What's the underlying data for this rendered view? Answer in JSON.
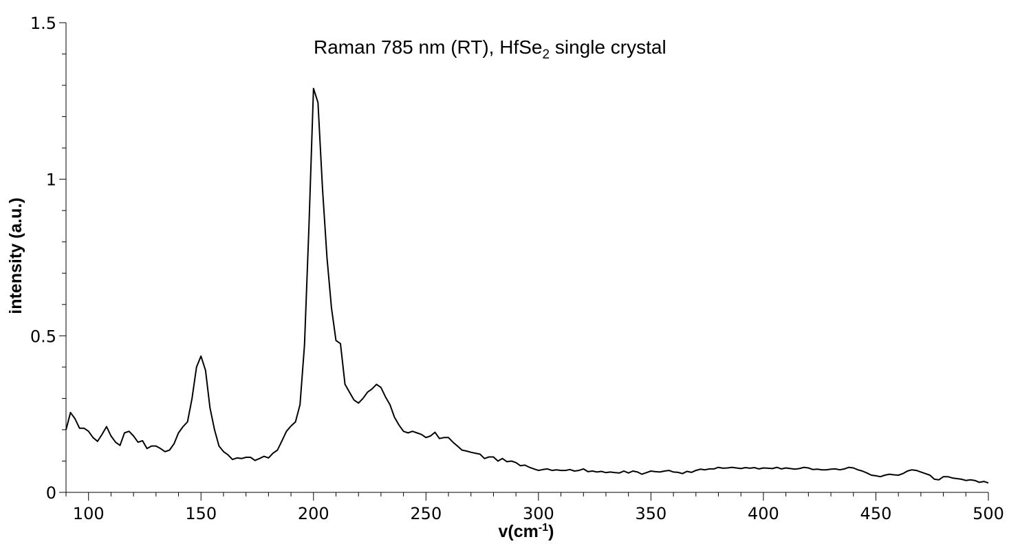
{
  "chart_data": {
    "type": "line",
    "title_main": "Raman 785 nm (RT), HfSe",
    "title_sub": "2",
    "title_rest": " single crystal",
    "xlabel_main": "v(cm",
    "xlabel_sup": "-1",
    "xlabel_end": ")",
    "ylabel": "intensity (a.u.)",
    "xlim": [
      90,
      500
    ],
    "ylim": [
      0,
      1.5
    ],
    "x_ticks": [
      "100",
      "150",
      "200",
      "250",
      "300",
      "350",
      "400",
      "450",
      "500"
    ],
    "y_ticks": [
      "0",
      "0.5",
      "1",
      "1.5"
    ],
    "line_color": "#000000",
    "grid": false,
    "series": [
      {
        "x": [
          90,
          92,
          94,
          96,
          98,
          100,
          102,
          104,
          106,
          108,
          110,
          112,
          114,
          116,
          118,
          120,
          122,
          124,
          126,
          128,
          130,
          132,
          134,
          136,
          138,
          140,
          142,
          144,
          146,
          148,
          150,
          152,
          154,
          156,
          158,
          160,
          162,
          164,
          166,
          168,
          170,
          172,
          174,
          176,
          178,
          180,
          182,
          184,
          186,
          188,
          190,
          192,
          194,
          196,
          198,
          200,
          202,
          204,
          206,
          208,
          210,
          212,
          214,
          216,
          218,
          220,
          222,
          224,
          226,
          228,
          230,
          232,
          234,
          236,
          238,
          240,
          242,
          244,
          246,
          248,
          250,
          252,
          254,
          256,
          258,
          260,
          262,
          264,
          266,
          268,
          270,
          272,
          274,
          276,
          278,
          280,
          282,
          284,
          286,
          288,
          290,
          292,
          294,
          296,
          298,
          300,
          302,
          304,
          306,
          308,
          310,
          312,
          314,
          316,
          318,
          320,
          322,
          324,
          326,
          328,
          330,
          332,
          334,
          336,
          338,
          340,
          342,
          344,
          346,
          348,
          350,
          352,
          354,
          356,
          358,
          360,
          362,
          364,
          366,
          368,
          370,
          372,
          374,
          376,
          378,
          380,
          382,
          384,
          386,
          388,
          390,
          392,
          394,
          396,
          398,
          400,
          402,
          404,
          406,
          408,
          410,
          412,
          414,
          416,
          418,
          420,
          422,
          424,
          426,
          428,
          430,
          432,
          434,
          436,
          438,
          440,
          442,
          444,
          446,
          448,
          450,
          452,
          454,
          456,
          458,
          460,
          462,
          464,
          466,
          468,
          470,
          472,
          474,
          476,
          478,
          480,
          482,
          484,
          486,
          488,
          490,
          492,
          494,
          496,
          498,
          500
        ],
        "y": [
          0.2,
          0.255,
          0.235,
          0.205,
          0.205,
          0.195,
          0.175,
          0.163,
          0.185,
          0.21,
          0.18,
          0.16,
          0.15,
          0.19,
          0.195,
          0.18,
          0.16,
          0.165,
          0.14,
          0.148,
          0.148,
          0.14,
          0.13,
          0.135,
          0.155,
          0.19,
          0.21,
          0.225,
          0.3,
          0.4,
          0.435,
          0.39,
          0.27,
          0.2,
          0.148,
          0.13,
          0.12,
          0.105,
          0.11,
          0.108,
          0.112,
          0.112,
          0.102,
          0.108,
          0.115,
          0.11,
          0.125,
          0.135,
          0.165,
          0.195,
          0.212,
          0.225,
          0.28,
          0.47,
          0.85,
          1.29,
          1.245,
          0.97,
          0.75,
          0.59,
          0.485,
          0.475,
          0.345,
          0.32,
          0.295,
          0.285,
          0.3,
          0.32,
          0.33,
          0.345,
          0.335,
          0.305,
          0.28,
          0.24,
          0.215,
          0.195,
          0.19,
          0.195,
          0.19,
          0.185,
          0.175,
          0.18,
          0.192,
          0.172,
          0.175,
          0.175,
          0.16,
          0.148,
          0.135,
          0.132,
          0.128,
          0.125,
          0.122,
          0.108,
          0.113,
          0.113,
          0.1,
          0.108,
          0.098,
          0.1,
          0.095,
          0.085,
          0.087,
          0.08,
          0.075,
          0.07,
          0.073,
          0.075,
          0.07,
          0.072,
          0.07,
          0.07,
          0.073,
          0.068,
          0.07,
          0.075,
          0.066,
          0.068,
          0.065,
          0.067,
          0.063,
          0.065,
          0.063,
          0.062,
          0.068,
          0.062,
          0.068,
          0.065,
          0.058,
          0.063,
          0.068,
          0.066,
          0.065,
          0.068,
          0.07,
          0.065,
          0.064,
          0.06,
          0.067,
          0.064,
          0.07,
          0.074,
          0.072,
          0.075,
          0.075,
          0.08,
          0.077,
          0.078,
          0.08,
          0.078,
          0.076,
          0.079,
          0.077,
          0.079,
          0.075,
          0.078,
          0.077,
          0.076,
          0.08,
          0.075,
          0.078,
          0.076,
          0.074,
          0.076,
          0.08,
          0.078,
          0.073,
          0.074,
          0.072,
          0.072,
          0.074,
          0.075,
          0.072,
          0.075,
          0.08,
          0.078,
          0.072,
          0.068,
          0.062,
          0.055,
          0.053,
          0.05,
          0.055,
          0.058,
          0.056,
          0.055,
          0.06,
          0.068,
          0.072,
          0.07,
          0.065,
          0.06,
          0.055,
          0.042,
          0.04,
          0.05,
          0.05,
          0.046,
          0.044,
          0.042,
          0.038,
          0.04,
          0.038,
          0.032,
          0.035,
          0.03
        ]
      }
    ]
  }
}
